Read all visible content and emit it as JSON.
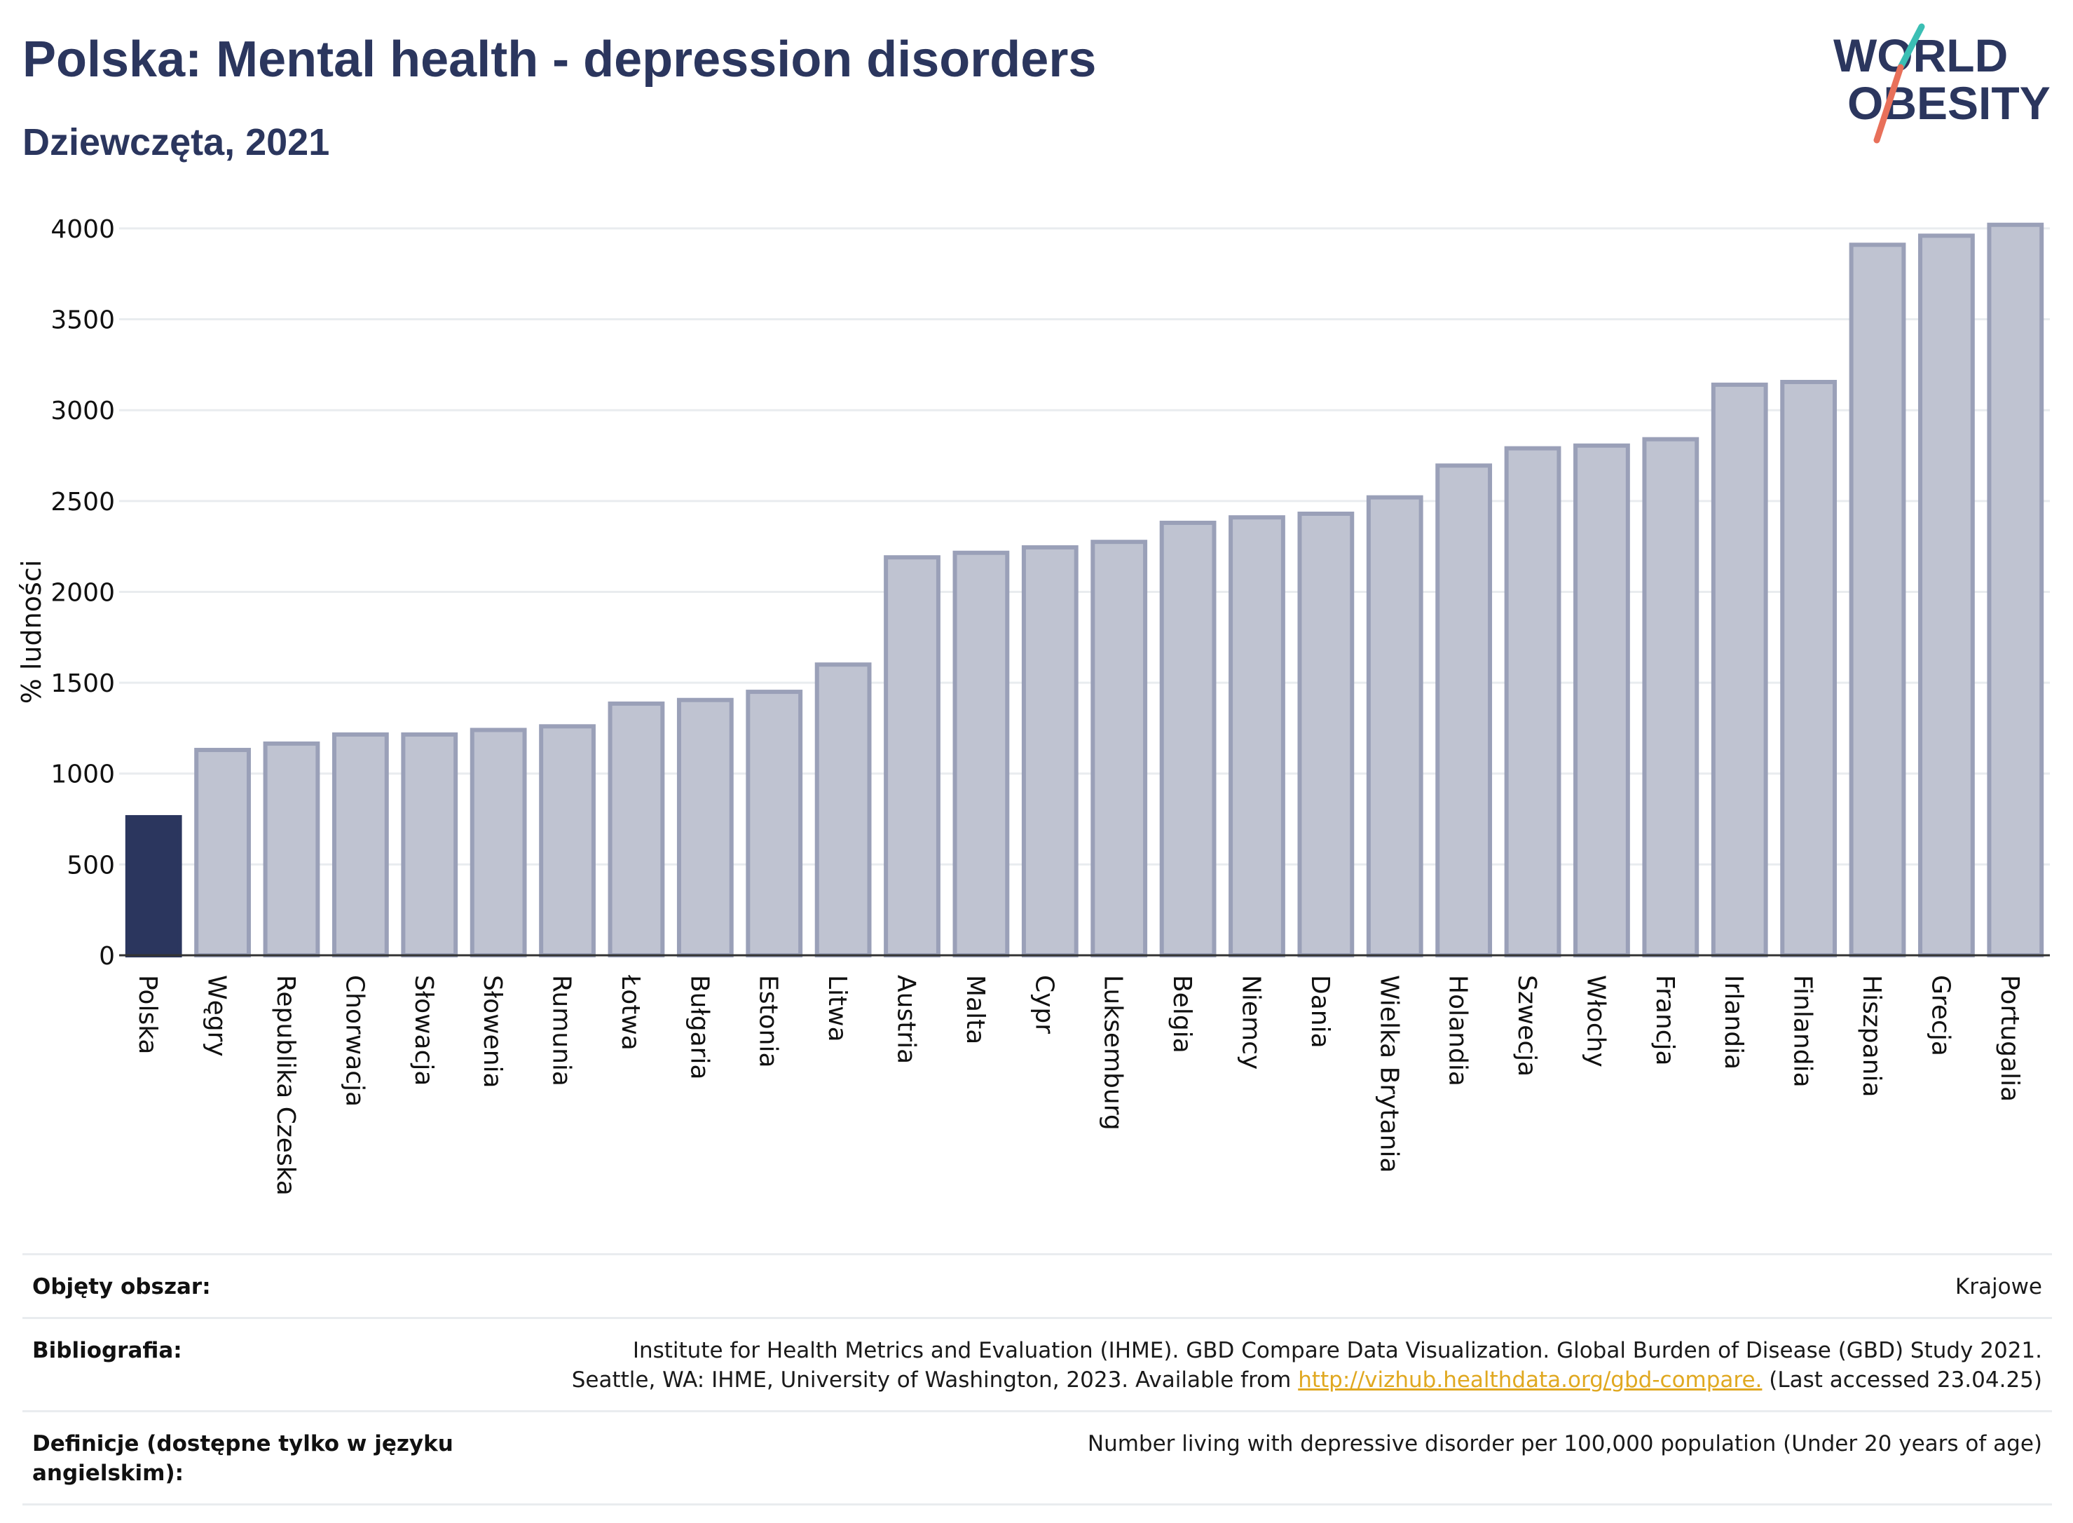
{
  "header": {
    "title": "Polska: Mental health - depression disorders",
    "subtitle": "Dziewczęta, 2021",
    "logo_line1": "WORLD",
    "logo_line2": "OBESITY"
  },
  "colors": {
    "highlight": "#2b365e",
    "bar": "#bfc3d1",
    "bar_stroke": "#9aa0b8",
    "title": "#2b365e",
    "link": "#e0a820",
    "logo_teal": "#3bbfb4",
    "logo_coral": "#e8705a"
  },
  "chart_data": {
    "type": "bar",
    "ylabel": "% ludności",
    "ylim": [
      0,
      4100
    ],
    "yticks": [
      0,
      500,
      1000,
      1500,
      2000,
      2500,
      3000,
      3500,
      4000
    ],
    "grid": true,
    "highlight_category": "Polska",
    "categories": [
      "Polska",
      "Węgry",
      "Republika Czeska",
      "Chorwacja",
      "Słowacja",
      "Słowenia",
      "Rumunia",
      "Łotwa",
      "Bułgaria",
      "Estonia",
      "Litwa",
      "Austria",
      "Malta",
      "Cypr",
      "Luksemburg",
      "Belgia",
      "Niemcy",
      "Dania",
      "Wielka Brytania",
      "Holandia",
      "Szwecja",
      "Włochy",
      "Francja",
      "Irlandia",
      "Finlandia",
      "Hiszpania",
      "Grecja",
      "Portugalia"
    ],
    "values": [
      760,
      1130,
      1165,
      1215,
      1215,
      1240,
      1260,
      1385,
      1405,
      1450,
      1600,
      2190,
      2215,
      2245,
      2275,
      2380,
      2410,
      2430,
      2520,
      2695,
      2790,
      2805,
      2840,
      3140,
      3155,
      3910,
      3960,
      4020
    ]
  },
  "meta": {
    "rows": [
      {
        "label": "Objęty obszar:",
        "value": "Krajowe"
      },
      {
        "label": "Bibliografia:",
        "value_line1": "Institute for Health Metrics and Evaluation (IHME). GBD Compare Data Visualization. Global Burden of Disease (GBD) Study 2021.",
        "value_line2_pre": "Seattle, WA: IHME, University of Washington, 2023. Available from ",
        "link": "http://vizhub.healthdata.org/gbd-compare.",
        "value_line2_post": " (Last accessed 23.04.25)"
      },
      {
        "label": "Definicje (dostępne tylko w języku angielskim):",
        "value": "Number living with depressive disorder per 100,000 population (Under 20 years of age)"
      }
    ]
  }
}
